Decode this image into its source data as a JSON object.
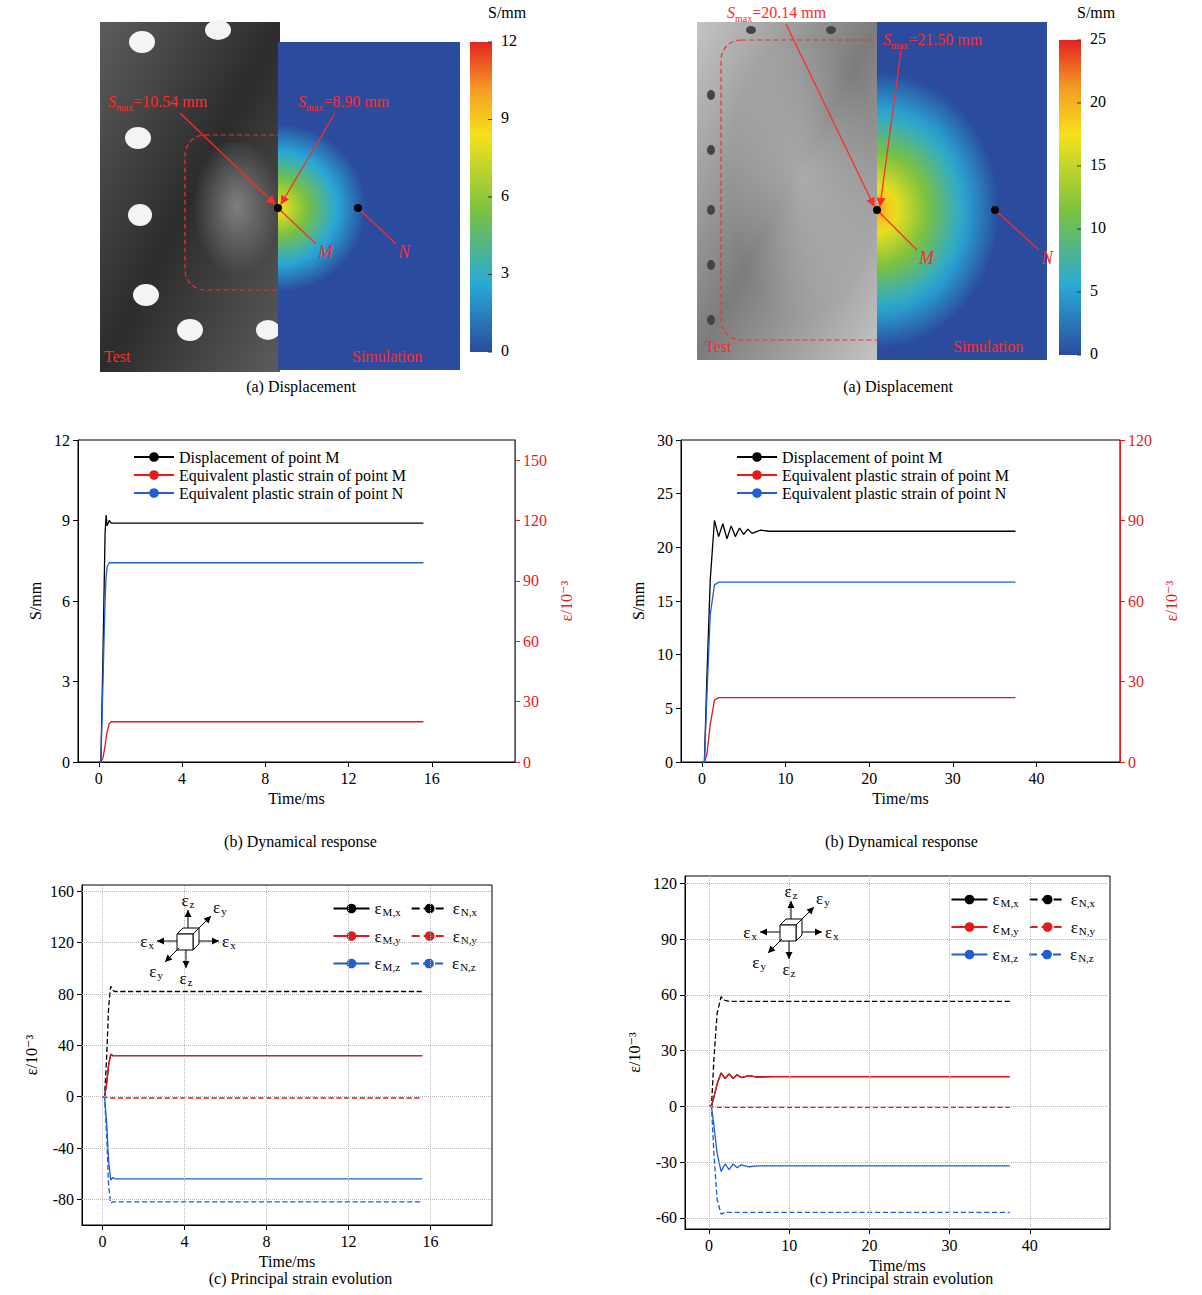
{
  "chart_data": [
    {
      "type": "contour",
      "title": "(a) Displacement",
      "colorbar": {
        "label": "S/mm",
        "range": [
          0,
          12
        ],
        "ticks": [
          0,
          3,
          6,
          9,
          12
        ]
      },
      "test_label": "Test",
      "simulation_label": "Simulation",
      "test_max": "Smax=10.54 mm",
      "simulation_max": "Smax=8.90 mm",
      "points": [
        "M",
        "N"
      ]
    },
    {
      "type": "contour",
      "title": "(a) Displacement",
      "colorbar": {
        "label": "S/mm",
        "range": [
          0,
          25
        ],
        "ticks": [
          0,
          5,
          10,
          15,
          20,
          25
        ]
      },
      "test_label": "Test",
      "simulation_label": "Simulation",
      "test_max": "Smax=20.14 mm",
      "simulation_max": "Smax=21.50 mm",
      "points": [
        "M",
        "N"
      ]
    },
    {
      "type": "line",
      "title": "(b) Dynamical response",
      "xlabel": "Time/ms",
      "ylabel": "S/mm",
      "y2label": "ε/10⁻³",
      "xlim": [
        -1,
        20
      ],
      "xticks": [
        0,
        4,
        8,
        12,
        16
      ],
      "ylim": [
        0,
        12
      ],
      "yticks": [
        0,
        3,
        6,
        9,
        12
      ],
      "y2lim": [
        0,
        160
      ],
      "y2ticks": [
        0,
        30,
        60,
        90,
        120,
        150
      ],
      "grid": false,
      "legend": "upper left",
      "series": [
        {
          "name": "Displacement of point M",
          "color": "#000000",
          "line_style": "solid",
          "x": [
            0,
            0.1,
            0.2,
            0.3,
            0.35,
            0.4,
            0.5,
            0.6,
            0.8,
            1,
            2,
            15.6
          ],
          "values": [
            0,
            0,
            4,
            8.5,
            9.2,
            8.8,
            9.0,
            8.9,
            8.9,
            8.9,
            8.9,
            8.9
          ]
        },
        {
          "name": "Equivalent plastic strain of point M",
          "color": "#e41a1c",
          "line_style": "solid",
          "axis": "y2",
          "x": [
            0,
            0.1,
            0.2,
            0.3,
            0.35,
            0.4,
            0.5,
            0.6,
            0.8,
            1,
            2,
            15.6
          ],
          "values": [
            0,
            0,
            2,
            8,
            12,
            15,
            19,
            20,
            20,
            20,
            20,
            20
          ]
        },
        {
          "name": "Equivalent plastic strain of point N",
          "color": "#1f5fd0",
          "line_style": "solid",
          "axis": "y2",
          "x": [
            0,
            0.1,
            0.2,
            0.3,
            0.35,
            0.4,
            0.5,
            0.6,
            0.8,
            1,
            2,
            15.6
          ],
          "values": [
            0,
            0,
            40,
            80,
            92,
            97,
            99,
            99,
            99,
            99,
            99,
            99
          ]
        }
      ]
    },
    {
      "type": "line",
      "title": "(b) Dynamical response",
      "xlabel": "Time/ms",
      "ylabel": "S/mm",
      "y2label": "ε/10⁻³",
      "xlim": [
        -2.5,
        50
      ],
      "xticks": [
        0,
        10,
        20,
        30,
        40
      ],
      "ylim": [
        0,
        30
      ],
      "yticks": [
        0,
        5,
        10,
        15,
        20,
        25,
        30
      ],
      "y2lim": [
        0,
        120
      ],
      "y2ticks": [
        0,
        30,
        60,
        90,
        120
      ],
      "grid": false,
      "legend": "upper left",
      "series": [
        {
          "name": "Displacement of point M",
          "color": "#000000",
          "line_style": "solid",
          "x": [
            0,
            0.3,
            0.6,
            1.0,
            1.5,
            2.0,
            2.5,
            3.0,
            3.5,
            4.0,
            4.5,
            5.0,
            5.5,
            6.0,
            7,
            8,
            10,
            37.5
          ],
          "values": [
            0,
            0,
            8,
            17,
            22.5,
            21,
            22.2,
            20.8,
            22,
            21,
            21.8,
            21.2,
            21.7,
            21.3,
            21.6,
            21.5,
            21.5,
            21.5
          ]
        },
        {
          "name": "Equivalent plastic strain of point M",
          "color": "#e41a1c",
          "line_style": "solid",
          "axis": "y2",
          "x": [
            0,
            0.3,
            0.6,
            1.0,
            1.5,
            2.0,
            2.5,
            3.0,
            3.5,
            4.0,
            4.5,
            5.0,
            5.5,
            6.0,
            7,
            8,
            10,
            37.5
          ],
          "values": [
            0,
            0,
            3,
            14,
            23,
            24,
            24,
            24,
            24,
            24,
            24,
            24,
            24,
            24,
            24,
            24,
            24,
            24
          ]
        },
        {
          "name": "Equivalent plastic strain of point N",
          "color": "#1f5fd0",
          "line_style": "solid",
          "axis": "y2",
          "x": [
            0,
            0.3,
            0.6,
            1.0,
            1.5,
            2.0,
            2.5,
            3.0,
            3.5,
            4.0,
            4.5,
            5.0,
            5.5,
            6.0,
            7,
            8,
            10,
            37.5
          ],
          "values": [
            0,
            0,
            25,
            55,
            66,
            67,
            67,
            67,
            67,
            67,
            67,
            67,
            67,
            67,
            67,
            67,
            67,
            67
          ]
        }
      ]
    },
    {
      "type": "line",
      "title": "(c) Principal strain evolution",
      "xlabel": "Time/ms",
      "ylabel": "ε/10⁻³",
      "xlim": [
        -1,
        19
      ],
      "xticks": [
        0,
        4,
        8,
        12,
        16
      ],
      "ylim": [
        -100,
        165
      ],
      "yticks": [
        -80,
        -40,
        0,
        40,
        80,
        120,
        160
      ],
      "grid": true,
      "legend": "upper right",
      "annotations": [
        "εx",
        "εy",
        "εz"
      ],
      "series": [
        {
          "name": "εM,x",
          "color": "#000000",
          "line_style": "solid",
          "x": [
            0,
            0.1,
            0.2,
            0.3,
            0.4,
            0.5,
            0.6,
            1,
            2,
            15.6
          ],
          "values": [
            0,
            0,
            10,
            25,
            33,
            32,
            32,
            32,
            32,
            32
          ]
        },
        {
          "name": "εN,x",
          "color": "#000000",
          "line_style": "dashed",
          "x": [
            0,
            0.1,
            0.2,
            0.3,
            0.4,
            0.5,
            0.6,
            1,
            2,
            15.6
          ],
          "values": [
            0,
            0,
            30,
            70,
            86,
            83,
            82,
            82,
            82,
            82
          ]
        },
        {
          "name": "εM,y",
          "color": "#e41a1c",
          "line_style": "solid",
          "x": [
            0,
            0.1,
            0.2,
            0.3,
            0.4,
            0.5,
            0.6,
            1,
            2,
            15.6
          ],
          "values": [
            0,
            0,
            10,
            25,
            33,
            32,
            32,
            32,
            32,
            32
          ]
        },
        {
          "name": "εN,y",
          "color": "#e41a1c",
          "line_style": "dashed",
          "x": [
            0,
            0.1,
            0.2,
            0.3,
            0.4,
            0.5,
            0.6,
            1,
            2,
            15.6
          ],
          "values": [
            0,
            0,
            -0.5,
            -1,
            -1,
            -1,
            -1,
            -1,
            -1,
            -1
          ]
        },
        {
          "name": "εM,z",
          "color": "#1f5fd0",
          "line_style": "solid",
          "x": [
            0,
            0.1,
            0.2,
            0.3,
            0.4,
            0.5,
            0.6,
            1,
            2,
            15.6
          ],
          "values": [
            0,
            0,
            -20,
            -50,
            -65,
            -63,
            -64,
            -64,
            -64,
            -64
          ]
        },
        {
          "name": "εN,z",
          "color": "#1f5fd0",
          "line_style": "dashed",
          "x": [
            0,
            0.1,
            0.2,
            0.3,
            0.4,
            0.5,
            0.6,
            1,
            2,
            15.6
          ],
          "values": [
            0,
            0,
            -30,
            -70,
            -83,
            -82,
            -82,
            -82,
            -82,
            -82
          ]
        }
      ]
    },
    {
      "type": "line",
      "title": "(c) Principal strain evolution",
      "xlabel": "Time/ms",
      "ylabel": "ε/10⁻³",
      "xlim": [
        -3,
        50
      ],
      "xticks": [
        0,
        10,
        20,
        30,
        40
      ],
      "ylim": [
        -66,
        124
      ],
      "yticks": [
        -60,
        -30,
        0,
        30,
        60,
        90,
        120
      ],
      "grid": true,
      "legend": "upper right",
      "annotations": [
        "εx",
        "εy",
        "εz"
      ],
      "series": [
        {
          "name": "εM,x",
          "color": "#000000",
          "line_style": "solid",
          "x": [
            0,
            0.3,
            0.6,
            1.0,
            1.5,
            2,
            2.5,
            3,
            3.5,
            4,
            5,
            6,
            8,
            10,
            37.5
          ],
          "values": [
            0,
            0,
            5,
            12,
            18,
            15,
            17.5,
            15,
            17,
            15.5,
            16.5,
            15.8,
            16,
            16,
            16
          ]
        },
        {
          "name": "εN,x",
          "color": "#000000",
          "line_style": "dashed",
          "x": [
            0,
            0.3,
            0.6,
            1.0,
            1.5,
            2,
            2.5,
            3,
            3.5,
            4,
            5,
            6,
            8,
            10,
            37.5
          ],
          "values": [
            0,
            0,
            25,
            50,
            59,
            57,
            56.5,
            56.5,
            56.5,
            56.5,
            56.5,
            56.5,
            56.5,
            56.5,
            56.5
          ]
        },
        {
          "name": "εM,y",
          "color": "#e41a1c",
          "line_style": "solid",
          "x": [
            0,
            0.3,
            0.6,
            1.0,
            1.5,
            2,
            2.5,
            3,
            3.5,
            4,
            5,
            6,
            8,
            10,
            37.5
          ],
          "values": [
            0,
            0,
            5,
            12,
            18,
            15,
            17.5,
            15,
            17,
            15.5,
            16.5,
            15.8,
            16,
            16,
            16
          ]
        },
        {
          "name": "εN,y",
          "color": "#e41a1c",
          "line_style": "dashed",
          "x": [
            0,
            0.3,
            0.6,
            1.0,
            1.5,
            2,
            2.5,
            3,
            3.5,
            4,
            5,
            6,
            8,
            10,
            37.5
          ],
          "values": [
            0,
            0,
            -0.3,
            -0.5,
            -0.5,
            -0.5,
            -0.5,
            -0.5,
            -0.5,
            -0.5,
            -0.5,
            -0.5,
            -0.5,
            -0.5,
            -0.5
          ]
        },
        {
          "name": "εM,z",
          "color": "#1f5fd0",
          "line_style": "solid",
          "x": [
            0,
            0.3,
            0.6,
            1.0,
            1.5,
            2,
            2.5,
            3,
            3.5,
            4,
            5,
            6,
            8,
            10,
            37.5
          ],
          "values": [
            0,
            0,
            -10,
            -25,
            -35,
            -31,
            -34,
            -31,
            -33,
            -31.5,
            -32.5,
            -32,
            -32,
            -32,
            -32
          ]
        },
        {
          "name": "εN,z",
          "color": "#1f5fd0",
          "line_style": "dashed",
          "x": [
            0,
            0.3,
            0.6,
            1.0,
            1.5,
            2,
            2.5,
            3,
            3.5,
            4,
            5,
            6,
            8,
            10,
            37.5
          ],
          "values": [
            0,
            0,
            -25,
            -50,
            -58,
            -57,
            -57,
            -57,
            -57,
            -57,
            -57,
            -57,
            -57,
            -57,
            -57
          ]
        }
      ]
    }
  ]
}
